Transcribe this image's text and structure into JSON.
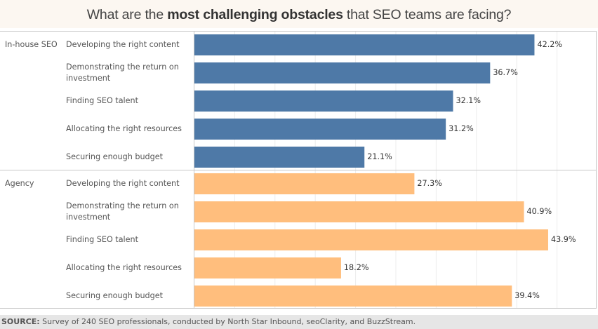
{
  "title": {
    "prefix": "What are the ",
    "bold": "most challenging obstacles",
    "suffix": " that SEO teams are facing?"
  },
  "source": {
    "label": "SOURCE:",
    "text": " Survey of 240 SEO professionals, conducted by North Star Inbound, seoClarity, and BuzzStream."
  },
  "colors": {
    "in_house": "#4e79a7",
    "agency": "#ffbe7d"
  },
  "chart_data": {
    "type": "bar",
    "orientation": "horizontal",
    "title": "What are the most challenging obstacles that SEO teams are facing?",
    "xlabel": "",
    "ylabel": "",
    "xlim": [
      0,
      50
    ],
    "x_grid_step": 5,
    "grid": true,
    "unit": "%",
    "categories": [
      "Developing the right content",
      "Demonstrating the return on investment",
      "Finding SEO talent",
      "Allocating the right resources",
      "Securing enough budget"
    ],
    "groups": [
      {
        "name": "In-house SEO",
        "labels": [
          "Developing the right content",
          "Demonstrating the return on investment",
          "Finding SEO talent",
          "Allocating the right resources",
          "Securing enough budget"
        ],
        "values": [
          42.2,
          36.7,
          32.1,
          31.2,
          21.1
        ],
        "value_labels": [
          "42.2%",
          "36.7%",
          "32.1%",
          "31.2%",
          "21.1%"
        ]
      },
      {
        "name": "Agency",
        "labels": [
          "Developing the right content",
          "Demonstrating the return on investment",
          "Finding SEO talent",
          "Allocating the right resources",
          "Securing enough budget"
        ],
        "values": [
          27.3,
          40.9,
          43.9,
          18.2,
          39.4
        ],
        "value_labels": [
          "27.3%",
          "40.9%",
          "43.9%",
          "18.2%",
          "39.4%"
        ]
      }
    ]
  }
}
